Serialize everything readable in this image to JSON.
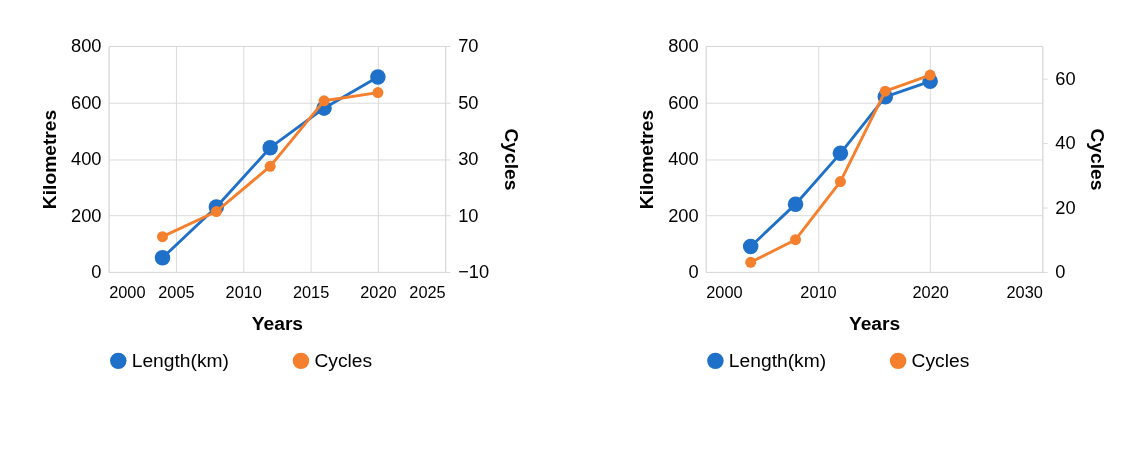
{
  "chart_data": [
    {
      "type": "line",
      "xlabel": "Years",
      "ylabel": "Kilometres",
      "y2label": "Cycles",
      "x": [
        2004,
        2008,
        2012,
        2016,
        2020
      ],
      "xlim": [
        2000,
        2025
      ],
      "xticks": [
        2000,
        2005,
        2010,
        2015,
        2020,
        2025
      ],
      "ylim": [
        0,
        800
      ],
      "yticks": [
        0,
        200,
        400,
        600,
        800
      ],
      "y2lim": [
        -10,
        70
      ],
      "y2ticks": [
        -10,
        10,
        30,
        50,
        70
      ],
      "grid": true,
      "legend": "bottom",
      "marker": "circle",
      "line_style": "solid",
      "series": [
        {
          "name": "Length(km)",
          "color": "#1f70c8",
          "values": [
            50,
            230,
            440,
            580,
            690
          ]
        },
        {
          "name": "Cycles",
          "color": "#f47f2c",
          "axis": "y2",
          "values": [
            2.5,
            11.4,
            27.4,
            50.6,
            53.5
          ]
        }
      ]
    },
    {
      "type": "line",
      "xlabel": "Years",
      "ylabel": "Kilometres",
      "y2label": "Cycles",
      "x": [
        2004,
        2008,
        2012,
        2016,
        2020
      ],
      "xlim": [
        2000,
        2030
      ],
      "xticks": [
        2000,
        2010,
        2020,
        2030
      ],
      "ylim": [
        0,
        800
      ],
      "yticks": [
        0,
        200,
        400,
        600,
        800
      ],
      "y2lim": [
        0,
        70
      ],
      "y2ticks": [
        0,
        20,
        40,
        60
      ],
      "grid": true,
      "legend": "bottom",
      "marker": "circle",
      "line_style": "solid",
      "series": [
        {
          "name": "Length(km)",
          "color": "#1f70c8",
          "values": [
            90,
            240,
            420,
            620,
            675
          ]
        },
        {
          "name": "Cycles",
          "color": "#f47f2c",
          "axis": "y2",
          "values": [
            3,
            10,
            28,
            56,
            61
          ]
        }
      ]
    }
  ]
}
